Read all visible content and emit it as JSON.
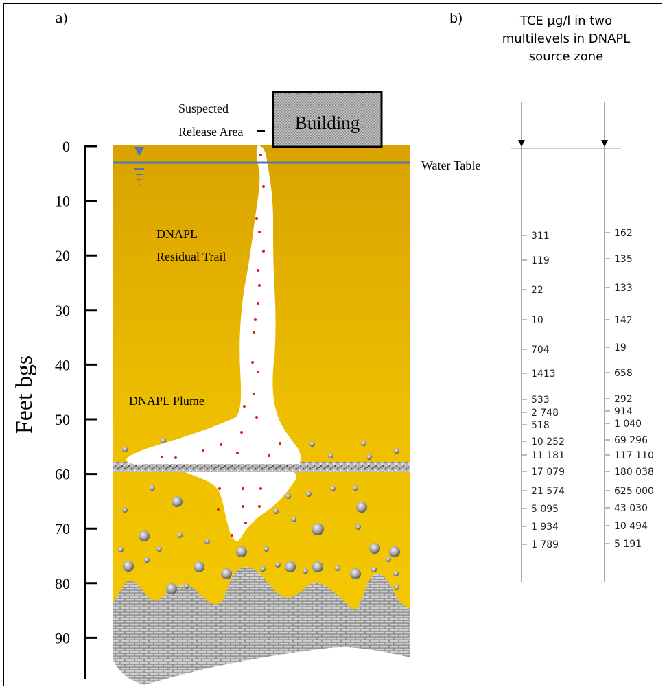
{
  "panel_labels": {
    "a": "a)",
    "b": "b)"
  },
  "panel_a": {
    "y_axis_label": "Feet bgs",
    "depth_ticks": [
      "0",
      "10",
      "20",
      "30",
      "40",
      "50",
      "60",
      "70",
      "80",
      "90"
    ],
    "building_label": "Building",
    "release_area_label_line1": "Suspected",
    "release_area_label_line2": "Release Area",
    "water_table_label": "Water Table",
    "residual_trail_label_line1": "DNAPL",
    "residual_trail_label_line2": "Residual Trail",
    "plume_label": "DNAPL Plume",
    "colors": {
      "sand": "#E0A500",
      "sand_light": "#F2C400",
      "water_line": "#4A78B8",
      "dnapl_dots": "#D62020"
    }
  },
  "panel_b": {
    "title_line1": "TCE µg/l in two",
    "title_line2": "multilevels in DNAPL",
    "title_line3": "source zone",
    "well_1": [
      "311",
      "119",
      "22",
      "10",
      "704",
      "1413",
      "533",
      "2 748",
      "518",
      "10 252",
      "11 181",
      "17 079",
      "21 574",
      "5 095",
      "1 934",
      "1 789"
    ],
    "well_2": [
      "162",
      "135",
      "133",
      "142",
      "19",
      "658",
      "292",
      "914",
      "1 040",
      "69 296",
      "117 110",
      "180 038",
      "625 000",
      "43 030",
      "10 494",
      "5 191"
    ]
  }
}
